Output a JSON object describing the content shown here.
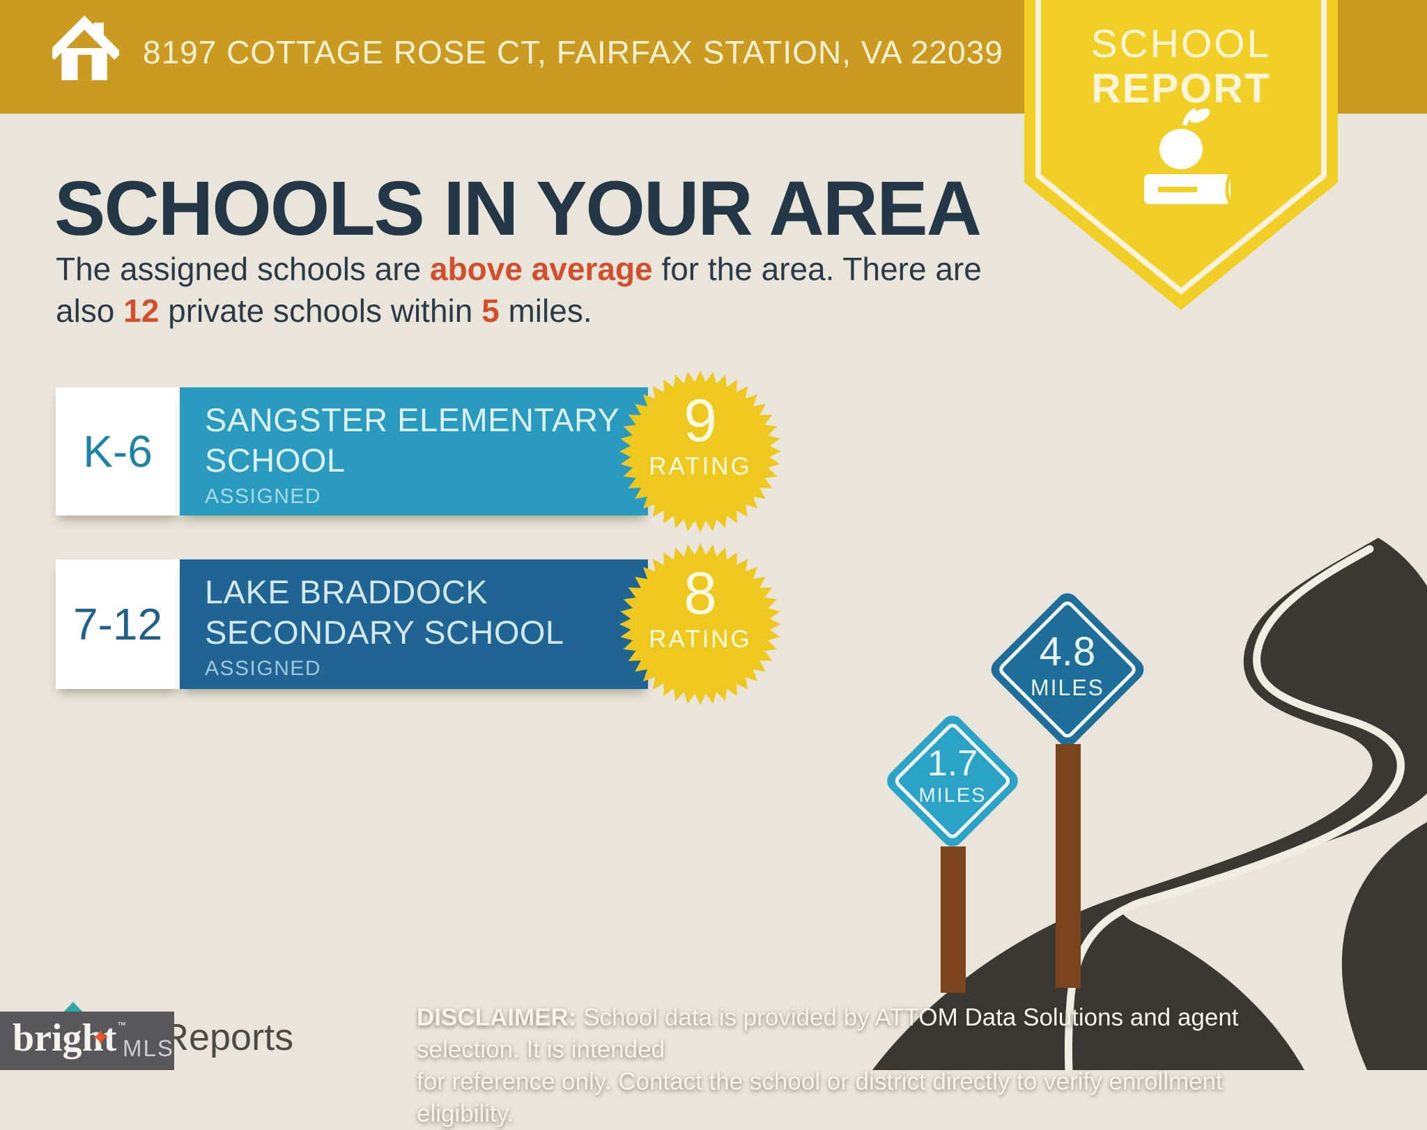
{
  "header": {
    "address": "8197 COTTAGE ROSE CT, FAIRFAX STATION, VA 22039"
  },
  "badge": {
    "line1": "SCHOOL",
    "line2": "REPORT"
  },
  "intro": {
    "title": "SCHOOLS IN YOUR AREA",
    "subtitle_l1_pre": "The assigned schools are ",
    "subtitle_l1_bold": "above average",
    "subtitle_l1_post": " for the area. There are",
    "subtitle_l2_pre": "also ",
    "subtitle_l2_num_private": "12",
    "subtitle_l2_mid": " private schools within ",
    "subtitle_l2_num_miles": "5",
    "subtitle_l2_post": " miles."
  },
  "schools": [
    {
      "grades": "K-6",
      "name_line1": "SANGSTER ELEMENTARY",
      "name_line2": "SCHOOL",
      "status": "ASSIGNED",
      "rating": "9",
      "rating_label": "RATING",
      "distance": "1.7",
      "distance_unit": "MILES"
    },
    {
      "grades": "7-12",
      "name_line1": "LAKE BRADDOCK",
      "name_line2": "SECONDARY SCHOOL",
      "status": "ASSIGNED",
      "rating": "8",
      "rating_label": "RATING",
      "distance": "4.8",
      "distance_unit": "MILES"
    }
  ],
  "footer": {
    "disclaimer_bold": "DISCLAIMER:",
    "disclaimer_l1": " School data is provided by ATTOM Data Solutions and agent selection. It is intended",
    "disclaimer_l2": "for reference only. Contact the school or district directly to verify enrollment eligibility.",
    "brand_name": "bright",
    "brand_star": "✦",
    "brand_tm": "™",
    "brand_suffix": "MLS",
    "partner_logo_partial": "Reports"
  },
  "colors": {
    "background": "#E9E5DA",
    "header_gold": "#CB9A20",
    "badge_yellow": "#F2CF27",
    "burst_yellow": "#EFC81F",
    "title_navy": "#243746",
    "accent_orange": "#D0502E",
    "elementary_teal": "#2A9BBE",
    "secondary_blue": "#1F6492",
    "sign_teal": "#2BA3C6",
    "sign_blue": "#1E6E99",
    "road_charcoal": "#3A3833",
    "post_brown": "#7B441C",
    "footer_gray": "#58585A",
    "brand_star_orange": "#E8542F"
  }
}
